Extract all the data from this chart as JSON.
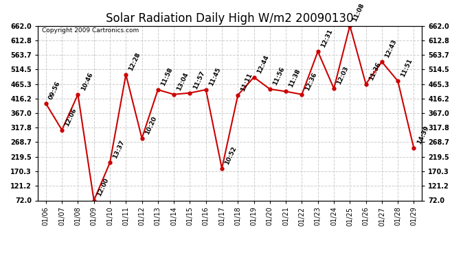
{
  "title": "Solar Radiation Daily High W/m2 20090130",
  "copyright": "Copyright 2009 Cartronics.com",
  "dates": [
    "01/06",
    "01/07",
    "01/08",
    "01/09",
    "01/10",
    "01/11",
    "01/12",
    "01/13",
    "01/14",
    "01/15",
    "01/16",
    "01/17",
    "01/18",
    "01/19",
    "01/20",
    "01/21",
    "01/22",
    "01/23",
    "01/24",
    "01/25",
    "01/26",
    "01/27",
    "01/28",
    "01/29"
  ],
  "values": [
    399,
    310,
    430,
    72,
    200,
    497,
    282,
    446,
    430,
    435,
    446,
    180,
    428,
    488,
    448,
    440,
    430,
    575,
    450,
    662,
    465,
    540,
    475,
    248
  ],
  "time_labels": [
    "09:56",
    "12:06",
    "10:46",
    "12:00",
    "13:37",
    "12:28",
    "10:20",
    "11:58",
    "13:04",
    "11:57",
    "11:45",
    "10:52",
    "11:11",
    "12:44",
    "11:56",
    "11:38",
    "12:36",
    "12:31",
    "12:03",
    "11:08",
    "11:36",
    "12:43",
    "11:51",
    "14:39"
  ],
  "line_color": "#cc0000",
  "marker_color": "#cc0000",
  "background_color": "#ffffff",
  "grid_color": "#cccccc",
  "ylim_min": 72.0,
  "ylim_max": 662.0,
  "ytick_values": [
    72.0,
    121.2,
    170.3,
    219.5,
    268.7,
    317.8,
    367.0,
    416.2,
    465.3,
    514.5,
    563.7,
    612.8,
    662.0
  ],
  "title_fontsize": 12,
  "tick_fontsize": 7,
  "annotation_fontsize": 6.5,
  "copyright_fontsize": 6.5
}
